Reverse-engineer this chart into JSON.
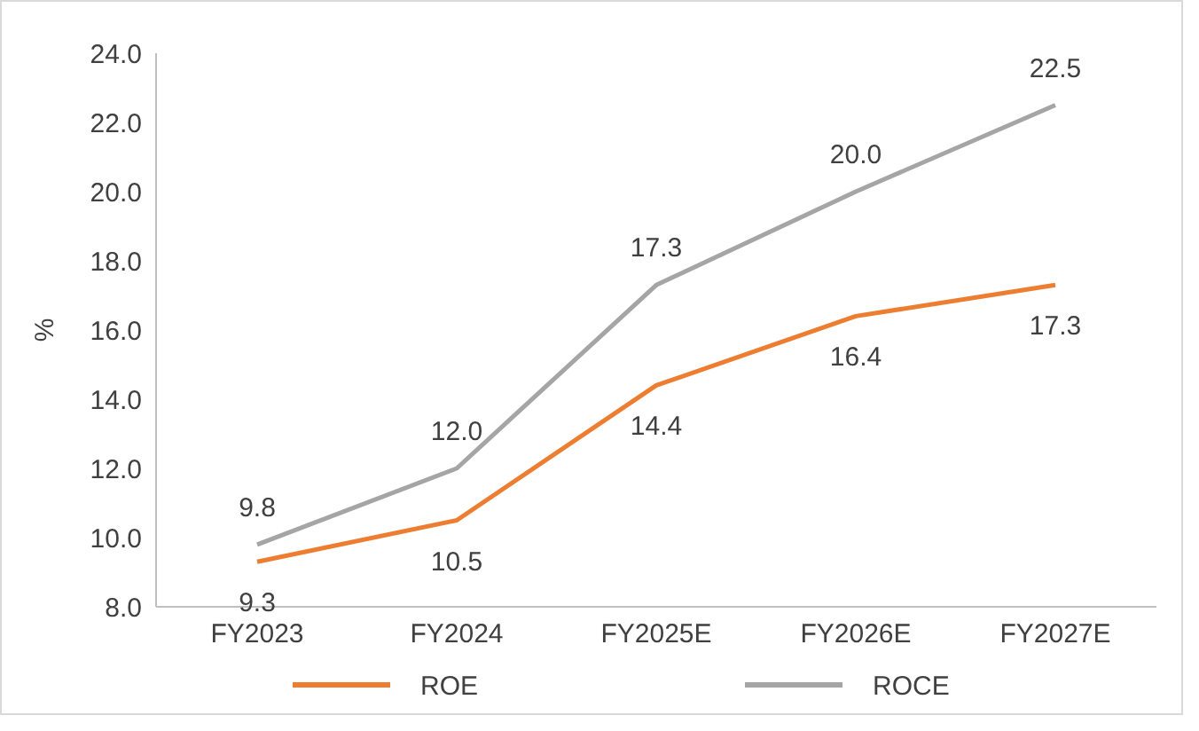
{
  "chart_data": {
    "type": "line",
    "ylabel": "%",
    "categories": [
      "FY2023",
      "FY2024",
      "FY2025E",
      "FY2026E",
      "FY2027E"
    ],
    "series": [
      {
        "name": "ROE",
        "color": "#ed7d31",
        "values": [
          9.3,
          10.5,
          14.4,
          16.4,
          17.3
        ],
        "value_labels": [
          "9.3",
          "10.5",
          "14.4",
          "16.4",
          "17.3"
        ]
      },
      {
        "name": "ROCE",
        "color": "#a5a5a5",
        "values": [
          9.8,
          12.0,
          17.3,
          20.0,
          22.5
        ],
        "value_labels": [
          "9.8",
          "12.0",
          "17.3",
          "20.0",
          "22.5"
        ]
      }
    ],
    "ylim": [
      8,
      24
    ],
    "yticks": [
      {
        "value": 8,
        "label": "8.0"
      },
      {
        "value": 10,
        "label": "10.0"
      },
      {
        "value": 12,
        "label": "12.0"
      },
      {
        "value": 14,
        "label": "14.0"
      },
      {
        "value": 16,
        "label": "16.0"
      },
      {
        "value": 18,
        "label": "18.0"
      },
      {
        "value": 20,
        "label": "20.0"
      },
      {
        "value": 22,
        "label": "22.0"
      },
      {
        "value": 24,
        "label": "24.0"
      }
    ],
    "grid": false,
    "legend": "bottom",
    "marker": "none",
    "line_style": "solid"
  }
}
